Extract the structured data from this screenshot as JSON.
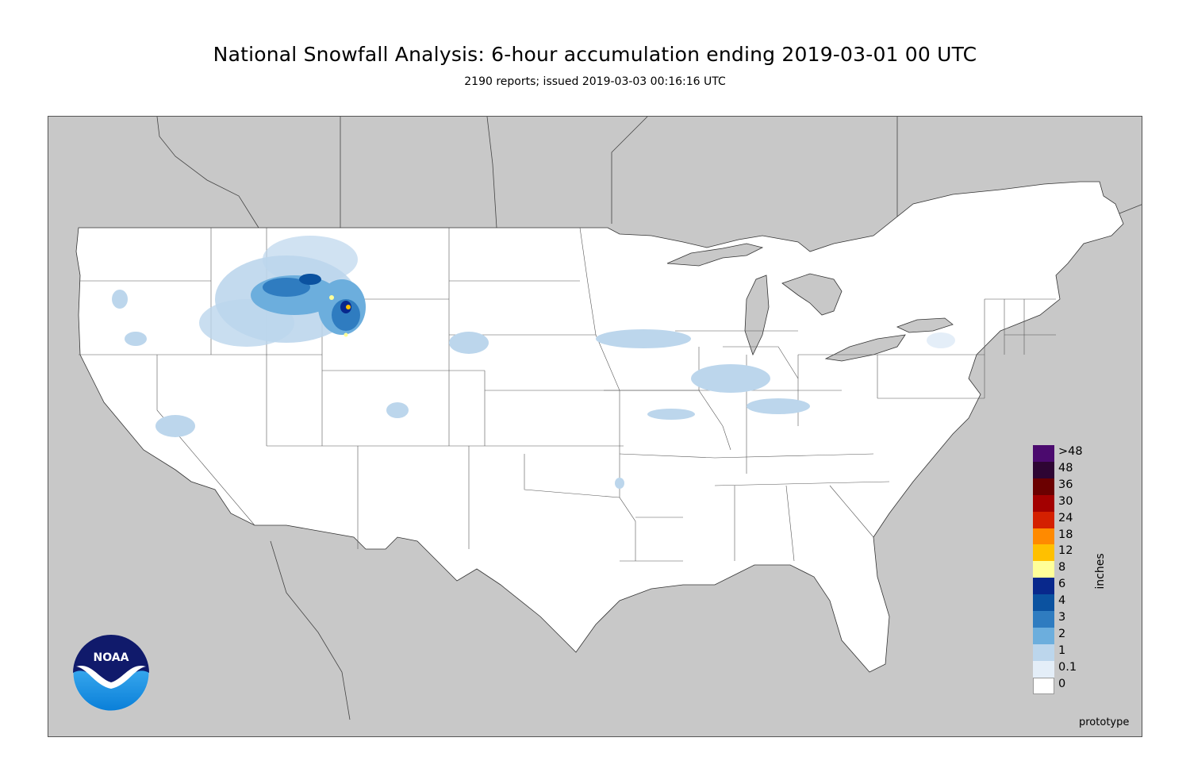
{
  "header": {
    "title": "National Snowfall Analysis: 6-hour accumulation ending 2019-03-01 00 UTC",
    "subtitle": "2190 reports; issued 2019-03-03 00:16:16 UTC"
  },
  "legend": {
    "unit": "inches",
    "bins": [
      {
        "label": ">48",
        "color": "#4b0a6e"
      },
      {
        "label": "48",
        "color": "#2e0533"
      },
      {
        "label": "36",
        "color": "#6b0000"
      },
      {
        "label": "30",
        "color": "#a30000"
      },
      {
        "label": "24",
        "color": "#d42000"
      },
      {
        "label": "18",
        "color": "#ff8a00"
      },
      {
        "label": "12",
        "color": "#ffc000"
      },
      {
        "label": "8",
        "color": "#ffff99"
      },
      {
        "label": "6",
        "color": "#08288c"
      },
      {
        "label": "4",
        "color": "#0b52a0"
      },
      {
        "label": "3",
        "color": "#2f7cc0"
      },
      {
        "label": "2",
        "color": "#6caedd"
      },
      {
        "label": "1",
        "color": "#bcd6ec"
      },
      {
        "label": "0.1",
        "color": "#e4eef8"
      },
      {
        "label": "0",
        "color": "#ffffff"
      }
    ]
  },
  "footer": {
    "prototype_label": "prototype"
  },
  "logo": {
    "text": "NOAA",
    "colors": {
      "top": "#101a6b",
      "bottom": "#1aa0f0"
    }
  },
  "map": {
    "colors": {
      "ocean_and_foreign": "#c8c8c8",
      "conus": "#ffffff",
      "borders": "#333333"
    }
  }
}
